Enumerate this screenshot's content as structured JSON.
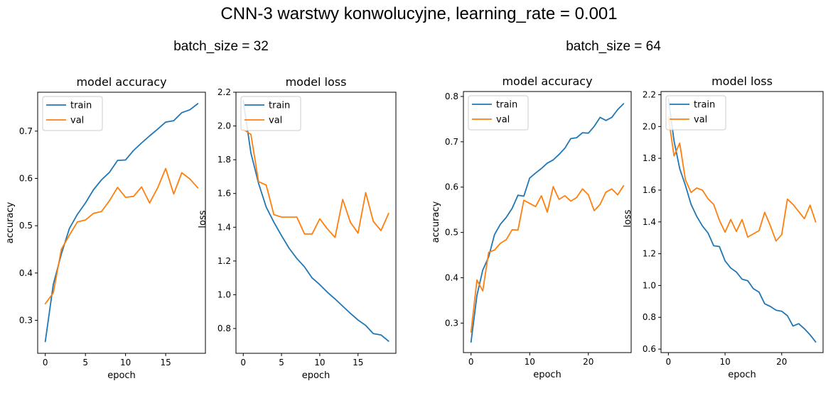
{
  "title": "CNN-3 warstwy konwolucyjne, learning_rate = 0.001",
  "group_titles": [
    "batch_size = 32",
    "batch_size = 64"
  ],
  "colors": {
    "train": "#1f77b4",
    "val": "#ff7f0e",
    "axis": "#000000",
    "background": "#ffffff"
  },
  "chart_data": [
    {
      "type": "line",
      "title": "model accuracy",
      "xlabel": "epoch",
      "ylabel": "accuracy",
      "xlim": [
        -0.95,
        19.95
      ],
      "ylim": [
        0.2302,
        0.7822
      ],
      "xticks": [
        0,
        5,
        10,
        15
      ],
      "yticks": [
        0.3,
        0.4,
        0.5,
        0.6,
        0.7
      ],
      "ytick_labels": [
        "0.3",
        "0.4",
        "0.5",
        "0.6",
        "0.7"
      ],
      "legend": "upper left",
      "series": [
        {
          "name": "train",
          "x": [
            0,
            1,
            2,
            3,
            4,
            5,
            6,
            7,
            8,
            9,
            10,
            11,
            12,
            13,
            14,
            15,
            16,
            17,
            18,
            19
          ],
          "values": [
            0.255,
            0.376,
            0.44,
            0.494,
            0.524,
            0.548,
            0.576,
            0.597,
            0.613,
            0.638,
            0.639,
            0.659,
            0.675,
            0.69,
            0.704,
            0.719,
            0.722,
            0.739,
            0.745,
            0.758
          ]
        },
        {
          "name": "val",
          "x": [
            0,
            1,
            2,
            3,
            4,
            5,
            6,
            7,
            8,
            9,
            10,
            11,
            12,
            13,
            14,
            15,
            16,
            17,
            18,
            19
          ],
          "values": [
            0.335,
            0.358,
            0.45,
            0.48,
            0.508,
            0.512,
            0.526,
            0.53,
            0.553,
            0.581,
            0.56,
            0.562,
            0.582,
            0.548,
            0.58,
            0.621,
            0.567,
            0.612,
            0.599,
            0.58
          ]
        }
      ]
    },
    {
      "type": "line",
      "title": "model loss",
      "xlabel": "epoch",
      "ylabel": "loss",
      "xlim": [
        -0.95,
        19.95
      ],
      "ylim": [
        0.653,
        2.2
      ],
      "xticks": [
        0,
        5,
        10,
        15
      ],
      "yticks": [
        0.8,
        1.0,
        1.2,
        1.4,
        1.6,
        1.8,
        2.0,
        2.2
      ],
      "ytick_labels": [
        "0.8",
        "1.0",
        "1.2",
        "1.4",
        "1.6",
        "1.8",
        "2.0",
        "2.2"
      ],
      "legend": "upper left",
      "series": [
        {
          "name": "train",
          "x": [
            0,
            1,
            2,
            3,
            4,
            5,
            6,
            7,
            8,
            9,
            10,
            11,
            12,
            13,
            14,
            15,
            16,
            17,
            18,
            19
          ],
          "values": [
            2.15,
            1.84,
            1.66,
            1.52,
            1.43,
            1.35,
            1.275,
            1.215,
            1.165,
            1.1,
            1.06,
            1.015,
            0.975,
            0.932,
            0.89,
            0.85,
            0.818,
            0.77,
            0.762,
            0.725
          ]
        },
        {
          "name": "val",
          "x": [
            0,
            1,
            2,
            3,
            4,
            5,
            6,
            7,
            8,
            9,
            10,
            11,
            12,
            13,
            14,
            15,
            16,
            17,
            18,
            19
          ],
          "values": [
            1.98,
            1.95,
            1.67,
            1.65,
            1.475,
            1.46,
            1.46,
            1.46,
            1.36,
            1.36,
            1.45,
            1.39,
            1.34,
            1.565,
            1.43,
            1.365,
            1.605,
            1.435,
            1.38,
            1.482
          ]
        }
      ]
    },
    {
      "type": "line",
      "title": "model accuracy",
      "xlabel": "epoch",
      "ylabel": "accuracy",
      "xlim": [
        -1.3,
        27.3
      ],
      "ylim": [
        0.2349,
        0.8109
      ],
      "xticks": [
        0,
        10,
        20
      ],
      "yticks": [
        0.3,
        0.4,
        0.5,
        0.6,
        0.7,
        0.8
      ],
      "ytick_labels": [
        "0.3",
        "0.4",
        "0.5",
        "0.6",
        "0.7",
        "0.8"
      ],
      "legend": "upper left",
      "series": [
        {
          "name": "train",
          "x": [
            0,
            1,
            2,
            3,
            4,
            5,
            6,
            7,
            8,
            9,
            10,
            11,
            12,
            13,
            14,
            15,
            16,
            17,
            18,
            19,
            20,
            21,
            22,
            23,
            24,
            25,
            26
          ],
          "values": [
            0.258,
            0.361,
            0.417,
            0.446,
            0.495,
            0.518,
            0.533,
            0.553,
            0.582,
            0.58,
            0.62,
            0.631,
            0.641,
            0.653,
            0.66,
            0.672,
            0.686,
            0.707,
            0.709,
            0.72,
            0.719,
            0.734,
            0.754,
            0.747,
            0.754,
            0.771,
            0.784
          ]
        },
        {
          "name": "val",
          "x": [
            0,
            1,
            2,
            3,
            4,
            5,
            6,
            7,
            8,
            9,
            10,
            11,
            12,
            13,
            14,
            15,
            16,
            17,
            18,
            19,
            20,
            21,
            22,
            23,
            24,
            25,
            26
          ],
          "values": [
            0.28,
            0.395,
            0.371,
            0.456,
            0.461,
            0.476,
            0.484,
            0.506,
            0.505,
            0.571,
            0.564,
            0.557,
            0.581,
            0.545,
            0.601,
            0.573,
            0.581,
            0.569,
            0.577,
            0.596,
            0.583,
            0.548,
            0.562,
            0.589,
            0.596,
            0.583,
            0.603
          ]
        }
      ]
    },
    {
      "type": "line",
      "title": "model loss",
      "xlabel": "epoch",
      "ylabel": "loss",
      "xlim": [
        -1.3,
        27.3
      ],
      "ylim": [
        0.578,
        2.22
      ],
      "xticks": [
        0,
        10,
        20
      ],
      "yticks": [
        0.6,
        0.8,
        1.0,
        1.2,
        1.4,
        1.6,
        1.8,
        2.0,
        2.2
      ],
      "ytick_labels": [
        "0.6",
        "0.8",
        "1.0",
        "1.2",
        "1.4",
        "1.6",
        "1.8",
        "2.0",
        "2.2"
      ],
      "legend": "upper left",
      "series": [
        {
          "name": "train",
          "x": [
            0,
            1,
            2,
            3,
            4,
            5,
            6,
            7,
            8,
            9,
            10,
            11,
            12,
            13,
            14,
            15,
            16,
            17,
            18,
            19,
            20,
            21,
            22,
            23,
            24,
            25,
            26
          ],
          "values": [
            2.175,
            1.91,
            1.735,
            1.63,
            1.51,
            1.435,
            1.375,
            1.33,
            1.25,
            1.245,
            1.155,
            1.11,
            1.085,
            1.04,
            1.03,
            0.98,
            0.958,
            0.885,
            0.868,
            0.845,
            0.838,
            0.81,
            0.745,
            0.76,
            0.728,
            0.69,
            0.645
          ]
        },
        {
          "name": "val",
          "x": [
            0,
            1,
            2,
            3,
            4,
            5,
            6,
            7,
            8,
            9,
            10,
            11,
            12,
            13,
            14,
            15,
            16,
            17,
            18,
            19,
            20,
            21,
            22,
            23,
            24,
            25,
            26
          ],
          "values": [
            2.06,
            1.815,
            1.895,
            1.665,
            1.585,
            1.613,
            1.6,
            1.545,
            1.51,
            1.41,
            1.335,
            1.415,
            1.34,
            1.415,
            1.305,
            1.325,
            1.345,
            1.46,
            1.375,
            1.28,
            1.32,
            1.543,
            1.51,
            1.465,
            1.42,
            1.505,
            1.4
          ]
        }
      ]
    }
  ]
}
